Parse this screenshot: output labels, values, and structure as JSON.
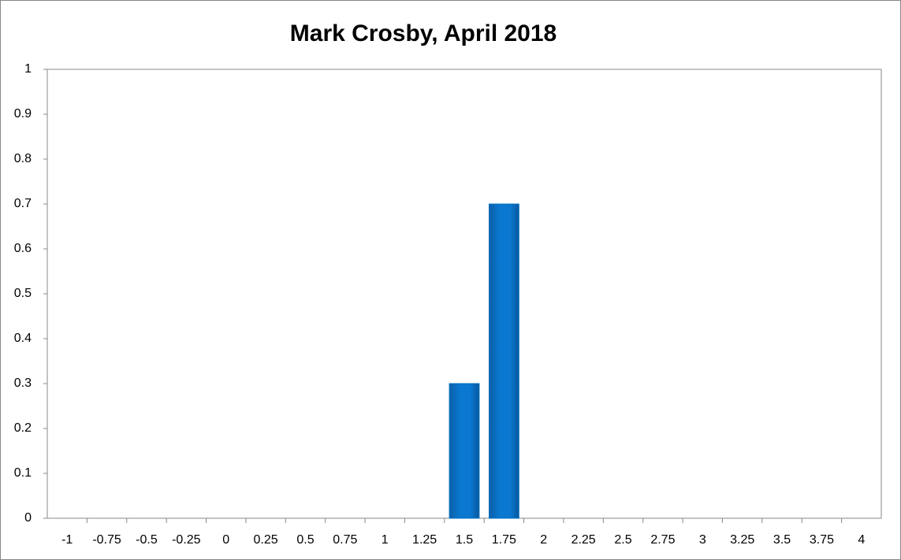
{
  "chart_data": {
    "type": "bar",
    "title": "Mark Crosby, April 2018",
    "categories": [
      "-1",
      "-0.75",
      "-0.5",
      "-0.25",
      "0",
      "0.25",
      "0.5",
      "0.75",
      "1",
      "1.25",
      "1.5",
      "1.75",
      "2",
      "2.25",
      "2.5",
      "2.75",
      "3",
      "3.25",
      "3.5",
      "3.75",
      "4"
    ],
    "values": [
      0,
      0,
      0,
      0,
      0,
      0,
      0,
      0,
      0,
      0,
      0.3,
      0.7,
      0,
      0,
      0,
      0,
      0,
      0,
      0,
      0,
      0
    ],
    "color": "#0070c0",
    "ylim": [
      0,
      1
    ],
    "yticks": [
      0,
      0.1,
      0.2,
      0.3,
      0.4,
      0.5,
      0.6,
      0.7,
      0.8,
      0.9,
      1
    ],
    "grid": false
  }
}
